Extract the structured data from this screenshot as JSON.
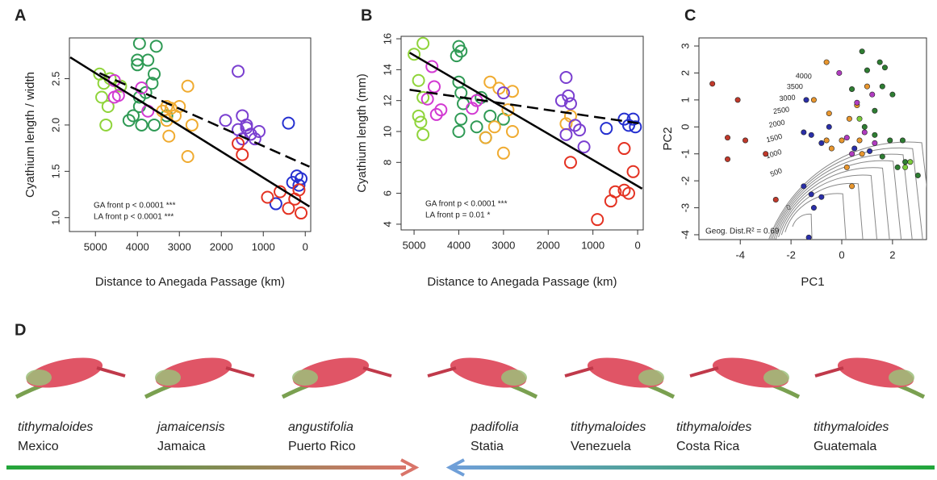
{
  "chart_data": [
    {
      "type": "scatter",
      "label": "A",
      "marker": "open",
      "xlabel": "Distance to Anegada Passage (km)",
      "ylabel": "Cyathium length / width",
      "xlim": [
        5620,
        -130
      ],
      "ylim": [
        0.85,
        2.94
      ],
      "xticks": [
        5000,
        4000,
        3000,
        2000,
        1000,
        0
      ],
      "yticks": [
        {
          "value": 1,
          "label": "1.0"
        },
        1.5,
        {
          "value": 2,
          "label": "2.0"
        },
        2.5
      ],
      "annotations": [
        "GA front p < 0.0001 ***",
        "LA front p < 0.0001 ***"
      ],
      "series": [
        {
          "color": "#8fd43a",
          "x": [
            4800,
            4850,
            4700,
            4750,
            4650,
            4900,
            4400
          ],
          "y": [
            2.45,
            2.3,
            2.2,
            2.0,
            2.5,
            2.55,
            2.42
          ]
        },
        {
          "color": "#2f9a55",
          "x": [
            3950,
            3550,
            3750,
            4000,
            3600,
            3650,
            3950,
            4100,
            3950,
            4200,
            3900,
            3600,
            3300,
            3800,
            4000
          ],
          "y": [
            2.88,
            2.85,
            2.7,
            2.65,
            2.55,
            2.45,
            2.3,
            2.1,
            2.2,
            2.05,
            2.0,
            2.0,
            2.1,
            2.35,
            2.7
          ]
        },
        {
          "color": "#d23ad2",
          "x": [
            4550,
            4550,
            4450,
            3900,
            3750
          ],
          "y": [
            2.48,
            2.3,
            2.32,
            2.4,
            2.15
          ]
        },
        {
          "color": "#f0ab30",
          "x": [
            3400,
            3200,
            3000,
            3300,
            3100,
            3250,
            2800,
            2700,
            2800,
            3300
          ],
          "y": [
            2.15,
            2.18,
            2.2,
            2.05,
            2.1,
            1.88,
            2.42,
            2.0,
            1.66,
            2.2
          ]
        },
        {
          "color": "#7a3fd0",
          "x": [
            1600,
            1900,
            1500,
            1600,
            1400,
            1300,
            1200,
            1500,
            1100,
            1400
          ],
          "y": [
            2.58,
            2.05,
            2.1,
            1.95,
            1.97,
            1.9,
            1.85,
            1.85,
            1.93,
            2.0
          ]
        },
        {
          "color": "#2530d0",
          "x": [
            400,
            200,
            100,
            300,
            150,
            700
          ],
          "y": [
            2.02,
            1.45,
            1.42,
            1.38,
            1.35,
            1.15
          ]
        },
        {
          "color": "#e43222",
          "x": [
            1600,
            1500,
            900,
            600,
            400,
            100,
            150,
            250
          ],
          "y": [
            1.8,
            1.68,
            1.22,
            1.28,
            1.1,
            1.05,
            1.3,
            1.2
          ]
        }
      ],
      "fits": [
        {
          "dash": false,
          "x": [
            5600,
            -100
          ],
          "y": [
            2.73,
            1.12
          ]
        },
        {
          "dash": true,
          "x": [
            4900,
            -100
          ],
          "y": [
            2.56,
            1.55
          ]
        }
      ]
    },
    {
      "type": "scatter",
      "label": "B",
      "marker": "open",
      "xlabel": "Distance to Anegada Passage (km)",
      "ylabel": "Cyathium length (mm)",
      "xlim": [
        5290,
        -125
      ],
      "ylim": [
        3.63,
        16.16
      ],
      "xticks": [
        5000,
        4000,
        3000,
        2000,
        1000,
        0
      ],
      "yticks": [
        4,
        6,
        8,
        10,
        12,
        14,
        16
      ],
      "annotations": [
        "GA front p < 0.0001 ***",
        "LA front  p = 0.01 *"
      ],
      "series": [
        {
          "color": "#8fd43a",
          "x": [
            4800,
            5000,
            4900,
            4800,
            4900,
            4850,
            4800
          ],
          "y": [
            15.7,
            15.0,
            13.3,
            12.2,
            11.0,
            10.6,
            9.8
          ]
        },
        {
          "color": "#2f9a55",
          "x": [
            4000,
            3950,
            4050,
            4000,
            3950,
            3900,
            3950,
            4000,
            3500,
            3300,
            3400,
            3600,
            3000
          ],
          "y": [
            15.5,
            15.2,
            14.9,
            13.2,
            12.5,
            11.8,
            10.8,
            10.0,
            12.2,
            11.0,
            9.6,
            10.3,
            10.8
          ]
        },
        {
          "color": "#d23ad2",
          "x": [
            4600,
            4550,
            4700,
            4500,
            4400,
            3600,
            3700
          ],
          "y": [
            14.2,
            12.9,
            12.1,
            11.1,
            11.4,
            12.0,
            11.5
          ]
        },
        {
          "color": "#f0ab30",
          "x": [
            3300,
            3100,
            2800,
            2900,
            3200,
            2800,
            3000,
            3400,
            1600,
            1500
          ],
          "y": [
            13.2,
            12.8,
            12.6,
            11.4,
            10.3,
            10.0,
            8.6,
            9.6,
            10.5,
            11.0
          ]
        },
        {
          "color": "#7a3fd0",
          "x": [
            1600,
            1550,
            1700,
            1500,
            1400,
            1300,
            1200,
            1600,
            3000
          ],
          "y": [
            13.5,
            12.3,
            12.0,
            11.8,
            10.4,
            10.1,
            9.0,
            9.8,
            12.5
          ]
        },
        {
          "color": "#2530d0",
          "x": [
            700,
            300,
            100,
            200,
            50
          ],
          "y": [
            10.2,
            10.8,
            10.8,
            10.4,
            10.3
          ]
        },
        {
          "color": "#e43222",
          "x": [
            1500,
            300,
            100,
            500,
            300,
            600,
            200,
            900
          ],
          "y": [
            8.0,
            8.9,
            7.4,
            6.1,
            6.2,
            5.5,
            6.0,
            4.3
          ]
        }
      ],
      "fits": [
        {
          "dash": false,
          "x": [
            5100,
            -100
          ],
          "y": [
            15.1,
            6.3
          ]
        },
        {
          "dash": true,
          "x": [
            5100,
            -100
          ],
          "y": [
            12.7,
            10.5
          ]
        }
      ]
    },
    {
      "type": "scatter",
      "label": "C",
      "marker": "filled",
      "xlabel": "PC1",
      "ylabel": "PC2",
      "xlim": [
        -5.63,
        3.34
      ],
      "ylim": [
        -4.18,
        3.3
      ],
      "xticks": [
        -4,
        -2,
        0,
        2
      ],
      "yticks": [
        -4,
        -3,
        -2,
        -1,
        0,
        1,
        2,
        3
      ],
      "annotations": [
        "Geog. Dist.R² = 0.69"
      ],
      "contours": [
        0,
        500,
        1000,
        1500,
        2000,
        2500,
        3000,
        3500,
        4000
      ],
      "series": [
        {
          "color": "#c0392b",
          "x": [
            -5.1,
            -4.1,
            -4.5,
            -3.8,
            -4.5,
            -3.0,
            -2.6
          ],
          "y": [
            1.6,
            1.0,
            -0.4,
            -0.5,
            -1.2,
            -1.0,
            -2.7
          ]
        },
        {
          "color": "#e8962e",
          "x": [
            -1.1,
            -0.5,
            0.6,
            0.3,
            0.0,
            0.7,
            -0.6,
            0.2,
            0.4,
            0.8,
            -0.4,
            -0.6,
            1.0
          ],
          "y": [
            1.0,
            0.5,
            0.8,
            0.3,
            -0.5,
            -0.5,
            -0.5,
            -1.5,
            -2.2,
            -1.0,
            -0.8,
            2.4,
            1.5
          ]
        },
        {
          "color": "#b03cc0",
          "x": [
            -0.1,
            0.6,
            1.2,
            0.2,
            0.9,
            1.3,
            0.4
          ],
          "y": [
            2.0,
            0.9,
            1.2,
            -0.4,
            -0.2,
            -0.6,
            -1.0
          ]
        },
        {
          "color": "#2a2fa8",
          "x": [
            -1.4,
            -1.5,
            -1.2,
            -0.5,
            -0.8,
            -1.5,
            -1.2,
            -0.8,
            -1.1,
            -1.3,
            0.5,
            1.1
          ],
          "y": [
            1.0,
            -0.2,
            -0.3,
            0.0,
            -0.6,
            -2.2,
            -2.5,
            -2.6,
            -3.0,
            -4.1,
            -0.8,
            -0.9
          ]
        },
        {
          "color": "#2e7d32",
          "x": [
            0.8,
            1.5,
            1.7,
            1.0,
            1.6,
            2.0,
            0.4,
            1.3,
            0.9,
            1.9,
            2.4,
            2.5,
            2.2,
            1.6,
            3.0,
            1.3
          ],
          "y": [
            2.8,
            2.4,
            2.2,
            2.1,
            1.5,
            1.2,
            1.4,
            0.6,
            0.0,
            -0.5,
            -0.5,
            -1.3,
            -1.5,
            -1.1,
            -1.8,
            -0.3
          ]
        },
        {
          "color": "#7ccc3c",
          "x": [
            2.7,
            2.5,
            0.7
          ],
          "y": [
            -1.3,
            -1.5,
            0.3
          ]
        }
      ]
    }
  ],
  "panel_d": {
    "label": "D",
    "items": [
      {
        "species": "tithymaloides",
        "location": "Mexico"
      },
      {
        "species": "jamaicensis",
        "location": "Jamaica"
      },
      {
        "species": "angustifolia",
        "location": "Puerto Rico"
      },
      {
        "species": "padifolia",
        "location": "Statia"
      },
      {
        "species": "tithymaloides",
        "location": "Venezuela"
      },
      {
        "species": "tithymaloides",
        "location": "Costa Rica"
      },
      {
        "species": "tithymaloides",
        "location": "Guatemala"
      }
    ]
  }
}
